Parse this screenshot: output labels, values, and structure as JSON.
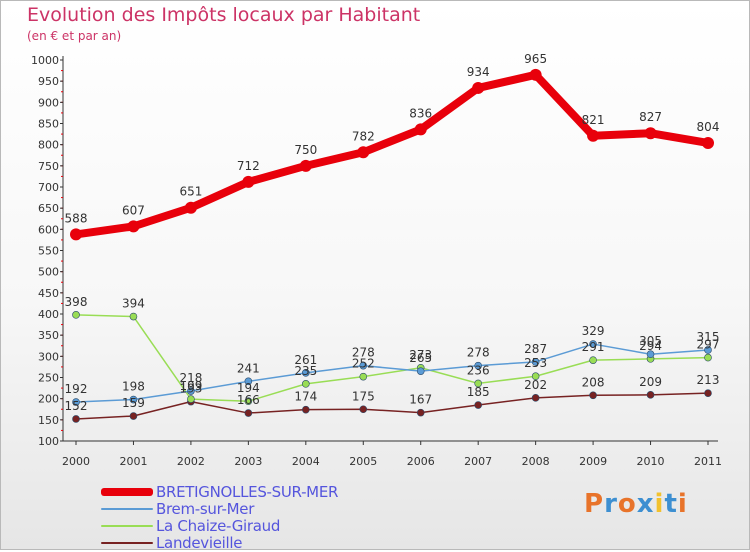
{
  "title": "Evolution des Impôts locaux par Habitant",
  "subtitle": "(en € et par an)",
  "logo": {
    "text": "Proxiti",
    "colors": [
      "#e8732a",
      "#3d8fd1",
      "#e8732a",
      "#3d8fd1",
      "#f2c12e",
      "#3d8fd1",
      "#e8732a"
    ]
  },
  "chart_data": {
    "type": "line",
    "x": [
      "2000",
      "2001",
      "2002",
      "2003",
      "2004",
      "2005",
      "2006",
      "2007",
      "2008",
      "2009",
      "2010",
      "2011"
    ],
    "ylim": [
      100,
      1000
    ],
    "yticks": [
      100,
      150,
      200,
      250,
      300,
      350,
      400,
      450,
      500,
      550,
      600,
      650,
      700,
      750,
      800,
      850,
      900,
      950,
      1000
    ],
    "grid": false,
    "legend_position": "bottom-left",
    "series": [
      {
        "name": "BRETIGNOLLES-SUR-MER",
        "color": "#e8000b",
        "values": [
          588,
          607,
          651,
          712,
          750,
          782,
          836,
          934,
          965,
          821,
          827,
          804
        ]
      },
      {
        "name": "Brem-sur-Mer",
        "color": "#5b9bd5",
        "values": [
          192,
          198,
          218,
          241,
          261,
          278,
          265,
          278,
          287,
          329,
          305,
          315
        ]
      },
      {
        "name": "La Chaize-Giraud",
        "color": "#99dd55",
        "values": [
          398,
          394,
          199,
          194,
          235,
          252,
          273,
          236,
          253,
          291,
          294,
          297
        ]
      },
      {
        "name": "Landevieille",
        "color": "#772222",
        "values": [
          152,
          159,
          193,
          166,
          174,
          175,
          167,
          185,
          202,
          208,
          209,
          213
        ]
      }
    ]
  }
}
